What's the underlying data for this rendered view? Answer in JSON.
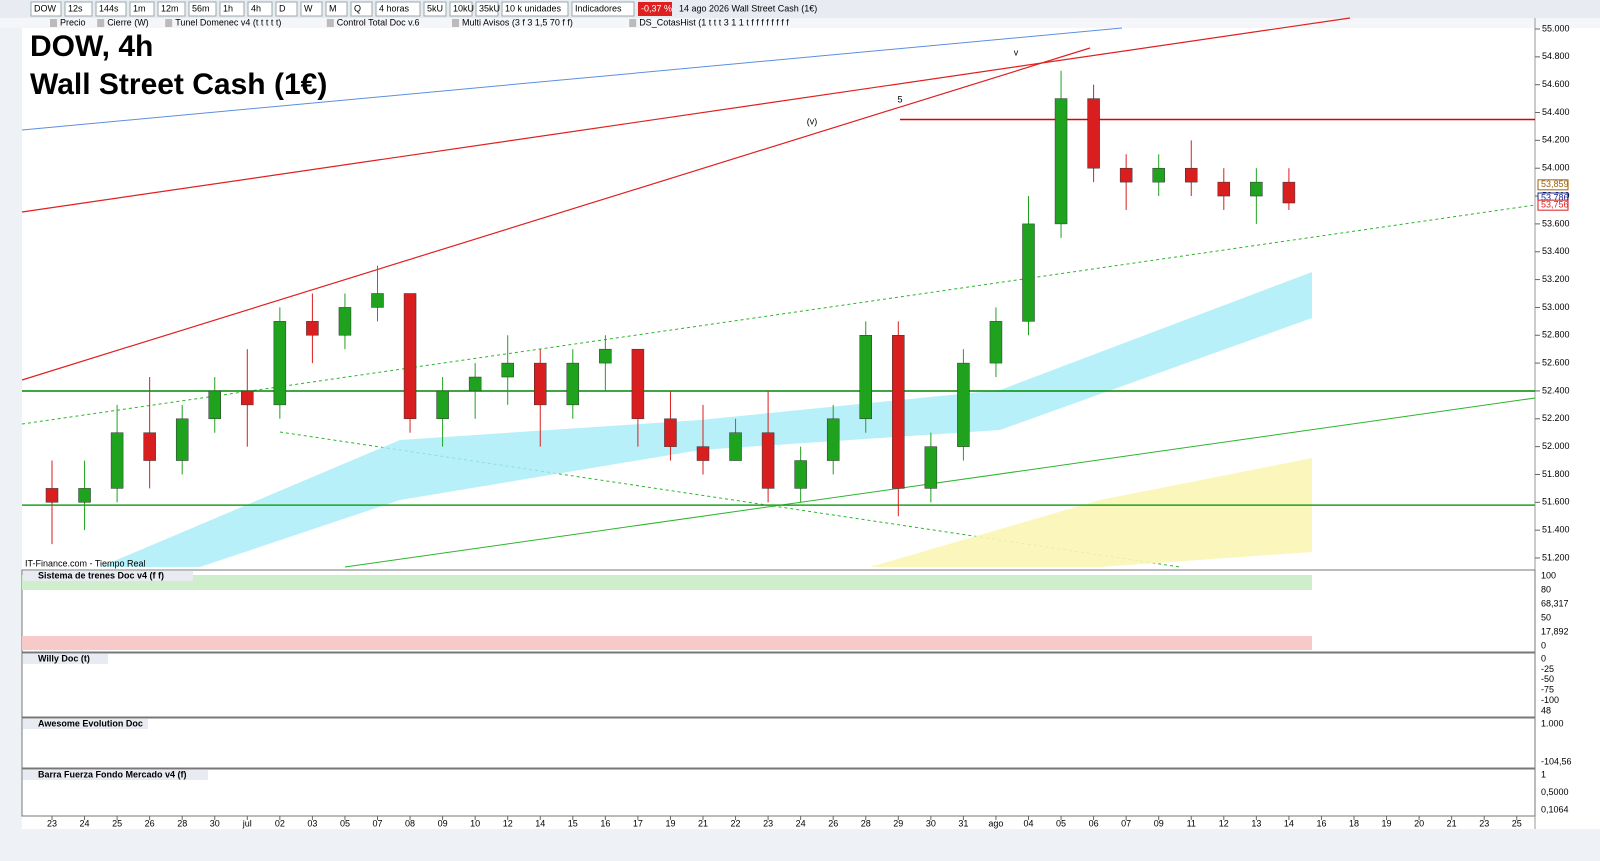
{
  "toolbar": {
    "symbol": "DOW",
    "buttons": [
      "12s",
      "144s",
      "1m",
      "12m",
      "56m",
      "1h",
      "4h",
      "D",
      "W",
      "M",
      "Q"
    ],
    "period": "4 horas",
    "unit_buttons": [
      "5kU",
      "10kU",
      "35kU"
    ],
    "units": "10 k unidades",
    "indicators": "Indicadores",
    "change": "-0,37 %",
    "info": "14 ago 2026 Wall Street Cash (1€)"
  },
  "legend_bar": [
    "Precio",
    "Cierre (W)",
    "Tunel Domenec v4 (t t t t t)",
    "Control Total Doc v.6",
    "Multi Avisos (3 f 3 1,5 70 f f)",
    "DS_CotasHist (1 t t t 3 1 1 t f f f f f f f f"
  ],
  "chart_data": {
    "type": "candlestick",
    "title": "DOW, 4h",
    "subtitle": "Wall Street Cash (1€)",
    "source": "IT-Finance.com - Tiempo Real",
    "annotations": [
      "v",
      "5",
      "(v)"
    ],
    "categories": [
      "23",
      "24",
      "25",
      "26",
      "28",
      "30",
      "jul",
      "02",
      "03",
      "05",
      "07",
      "08",
      "09",
      "10",
      "12",
      "14",
      "15",
      "16",
      "17",
      "19",
      "21",
      "22",
      "23",
      "24",
      "26",
      "28",
      "29",
      "30",
      "31",
      "ago",
      "04",
      "05",
      "06",
      "07",
      "09",
      "11",
      "12",
      "13",
      "14",
      "16",
      "18",
      "19",
      "20",
      "21",
      "23",
      "25"
    ],
    "open": [
      51700,
      51600,
      51700,
      52100,
      51900,
      52200,
      52400,
      52300,
      52900,
      52800,
      53000,
      53100,
      52200,
      52400,
      52500,
      52600,
      52300,
      52600,
      52700,
      52200,
      52000,
      51900,
      52100,
      51700,
      51900,
      52200,
      52800,
      51700,
      52000,
      52600,
      52900,
      53600,
      54500,
      54000,
      53900,
      54000,
      53900,
      53800,
      53900,
      null,
      null,
      null,
      null,
      null,
      null,
      null
    ],
    "high": [
      51900,
      51900,
      52300,
      52500,
      52300,
      52500,
      52700,
      53000,
      53100,
      53100,
      53300,
      53100,
      52500,
      52600,
      52800,
      52700,
      52700,
      52800,
      52700,
      52400,
      52300,
      52200,
      52400,
      52000,
      52300,
      52900,
      52900,
      52100,
      52700,
      53000,
      53800,
      54700,
      54600,
      54100,
      54100,
      54200,
      54000,
      54000,
      54000,
      null,
      null,
      null,
      null,
      null,
      null,
      null
    ],
    "low": [
      51300,
      51400,
      51600,
      51700,
      51800,
      52100,
      52000,
      52200,
      52600,
      52700,
      52900,
      52100,
      52000,
      52200,
      52300,
      52000,
      52200,
      52400,
      52000,
      51900,
      51800,
      51900,
      51600,
      51600,
      51800,
      52100,
      51500,
      51600,
      51900,
      52500,
      52800,
      53500,
      53900,
      53700,
      53800,
      53800,
      53700,
      53600,
      53700,
      null,
      null,
      null,
      null,
      null,
      null,
      null
    ],
    "close": [
      51600,
      51700,
      52100,
      51900,
      52200,
      52400,
      52300,
      52900,
      52800,
      53000,
      53100,
      52200,
      52400,
      52500,
      52600,
      52300,
      52600,
      52700,
      52200,
      52000,
      51900,
      52100,
      51700,
      51900,
      52200,
      52800,
      51700,
      52000,
      52600,
      52900,
      53600,
      54500,
      54000,
      53900,
      54000,
      53900,
      53800,
      53900,
      53750,
      null,
      null,
      null,
      null,
      null,
      null,
      null
    ],
    "up_color": "#1fa31f",
    "down_color": "#d81e1e",
    "ylim": [
      51100,
      55100
    ],
    "yticks": [
      {
        "value": 51200,
        "label": "51.200"
      },
      {
        "value": 51400,
        "label": "51.400"
      },
      {
        "value": 51600,
        "label": "51.600"
      },
      {
        "value": 51800,
        "label": "51.800"
      },
      {
        "value": 52000,
        "label": "52.000"
      },
      {
        "value": 52200,
        "label": "52.200"
      },
      {
        "value": 52400,
        "label": "52.400"
      },
      {
        "value": 52600,
        "label": "52.600"
      },
      {
        "value": 52800,
        "label": "52.800"
      },
      {
        "value": 53000,
        "label": "53.000"
      },
      {
        "value": 53200,
        "label": "53.200"
      },
      {
        "value": 53400,
        "label": "53.400"
      },
      {
        "value": 53600,
        "label": "53.600"
      },
      {
        "value": 53800,
        "label": "53.800"
      },
      {
        "value": 54000,
        "label": "54.000"
      },
      {
        "value": 54200,
        "label": "54.200"
      },
      {
        "value": 54400,
        "label": "54.400"
      },
      {
        "value": 54600,
        "label": "54.600"
      },
      {
        "value": 54800,
        "label": "54.800"
      },
      {
        "value": 55000,
        "label": "55.000"
      }
    ],
    "levels": [
      {
        "value": 54350,
        "color": "#e00000"
      },
      {
        "value": 52400,
        "color": "#008a00"
      },
      {
        "value": 51580,
        "color": "#1aa51a"
      }
    ],
    "price_labels": [
      {
        "value": 53859,
        "label": "53,859",
        "color": "#a0620a"
      },
      {
        "value": 53786,
        "label": "53,786",
        "color": "#1a2a9a"
      },
      {
        "value": 53756,
        "label": "53,756",
        "color": "#d81e1e"
      }
    ]
  },
  "panels": [
    {
      "name": "Sistema de trenes Doc v4 (f f)",
      "labels": [
        "100",
        "80",
        "68,317",
        "50",
        "17,892",
        "0"
      ]
    },
    {
      "name": "Willy Doc (t)",
      "labels": [
        "0",
        "-25",
        "-50",
        "-75",
        "-100",
        "48"
      ]
    },
    {
      "name": "Awesome Evolution Doc",
      "labels": [
        "1.000",
        "-104,56"
      ]
    },
    {
      "name": "Barra Fuerza Fondo Mercado v4 (f)",
      "labels": [
        "1",
        "0,5000",
        "0,1064"
      ]
    }
  ]
}
